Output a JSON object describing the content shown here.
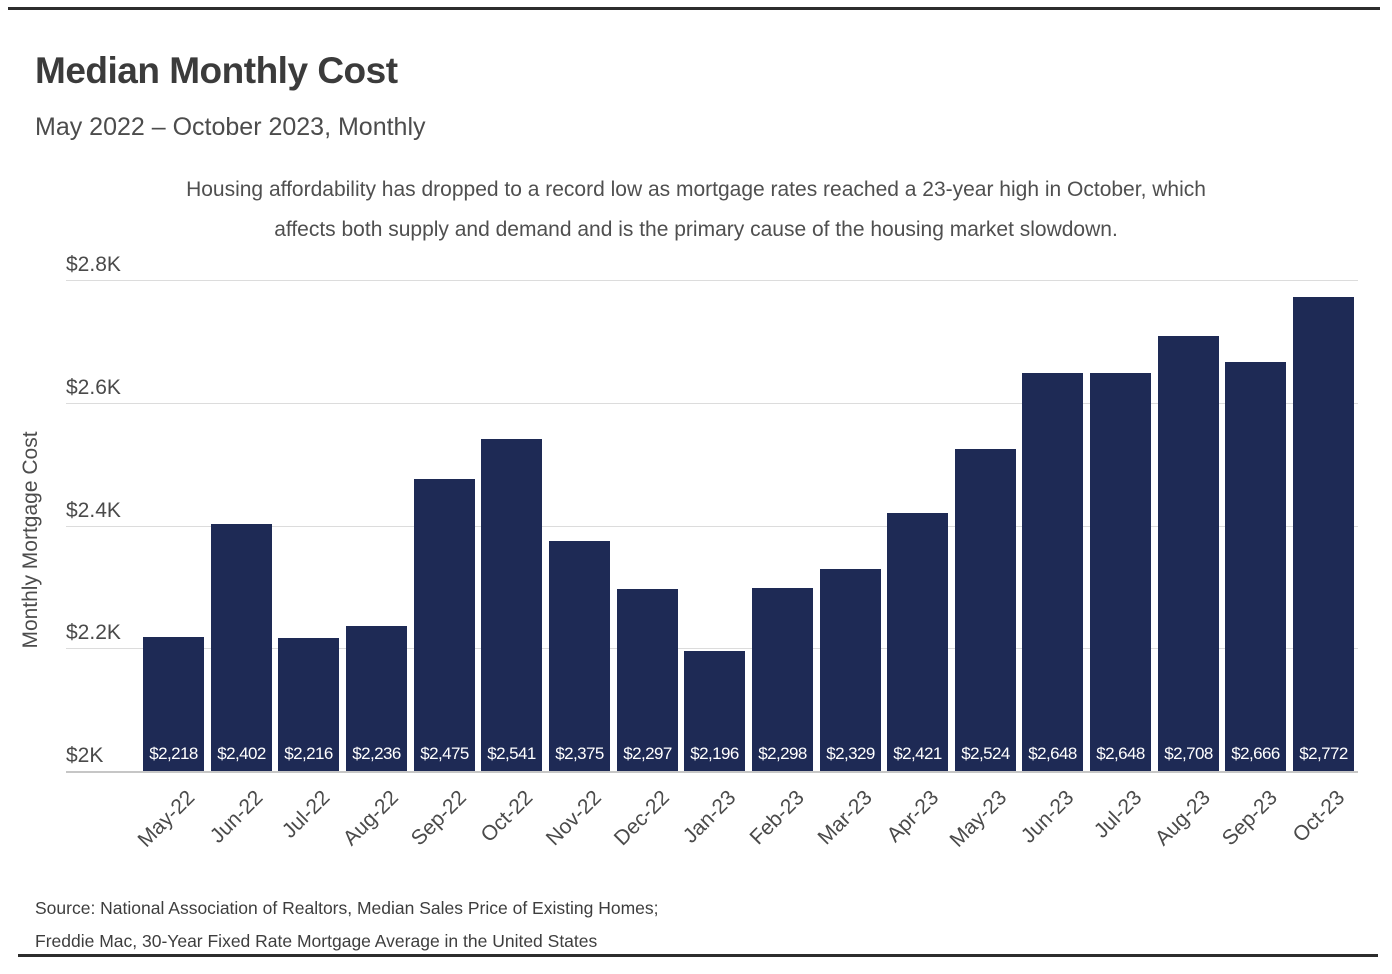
{
  "page": {
    "title": "Median Monthly Cost",
    "subtitle": "May 2022 – October 2023, Monthly",
    "annotation_line1": "Housing affordability has dropped to a record low as mortgage rates reached a 23-year high in October, which",
    "annotation_line2": "affects both supply and demand and is the primary cause of the housing market slowdown.",
    "source_line1": "Source: National Association of Realtors, Median Sales Price of Existing Homes;",
    "source_line2": "Freddie Mac, 30-Year Fixed Rate Mortgage Average in the United States"
  },
  "chart_data": {
    "type": "bar",
    "title": "Median Monthly Cost",
    "subtitle": "May 2022 – October 2023, Monthly",
    "xlabel": "",
    "ylabel": "Monthly Mortgage Cost",
    "ylim": [
      2000,
      2800
    ],
    "grid": "horizontal",
    "legend": "none",
    "categories": [
      "May-22",
      "Jun-22",
      "Jul-22",
      "Aug-22",
      "Sep-22",
      "Oct-22",
      "Nov-22",
      "Dec-22",
      "Jan-23",
      "Feb-23",
      "Mar-23",
      "Apr-23",
      "May-23",
      "Jun-23",
      "Jul-23",
      "Aug-23",
      "Sep-23",
      "Oct-23"
    ],
    "values": [
      2218,
      2402,
      2216,
      2236,
      2475,
      2541,
      2375,
      2297,
      2196,
      2298,
      2329,
      2421,
      2524,
      2648,
      2648,
      2708,
      2666,
      2772
    ],
    "bar_labels": [
      "$2,218",
      "$2,402",
      "$2,216",
      "$2,236",
      "$2,475",
      "$2,541",
      "$2,375",
      "$2,297",
      "$2,196",
      "$2,298",
      "$2,329",
      "$2,421",
      "$2,524",
      "$2,648",
      "$2,648",
      "$2,708",
      "$2,666",
      "$2,772"
    ],
    "y_ticks": [
      {
        "label": "$2K",
        "value": 2000
      },
      {
        "label": "$2.2K",
        "value": 2200
      },
      {
        "label": "$2.4K",
        "value": 2400
      },
      {
        "label": "$2.6K",
        "value": 2600
      },
      {
        "label": "$2.8K",
        "value": 2800
      }
    ],
    "bar_color": "#1e2a55",
    "bar_label_color": "#ffffff",
    "grid_color": "#dcdcdc",
    "axis_line_color": "#c6c6c6"
  }
}
